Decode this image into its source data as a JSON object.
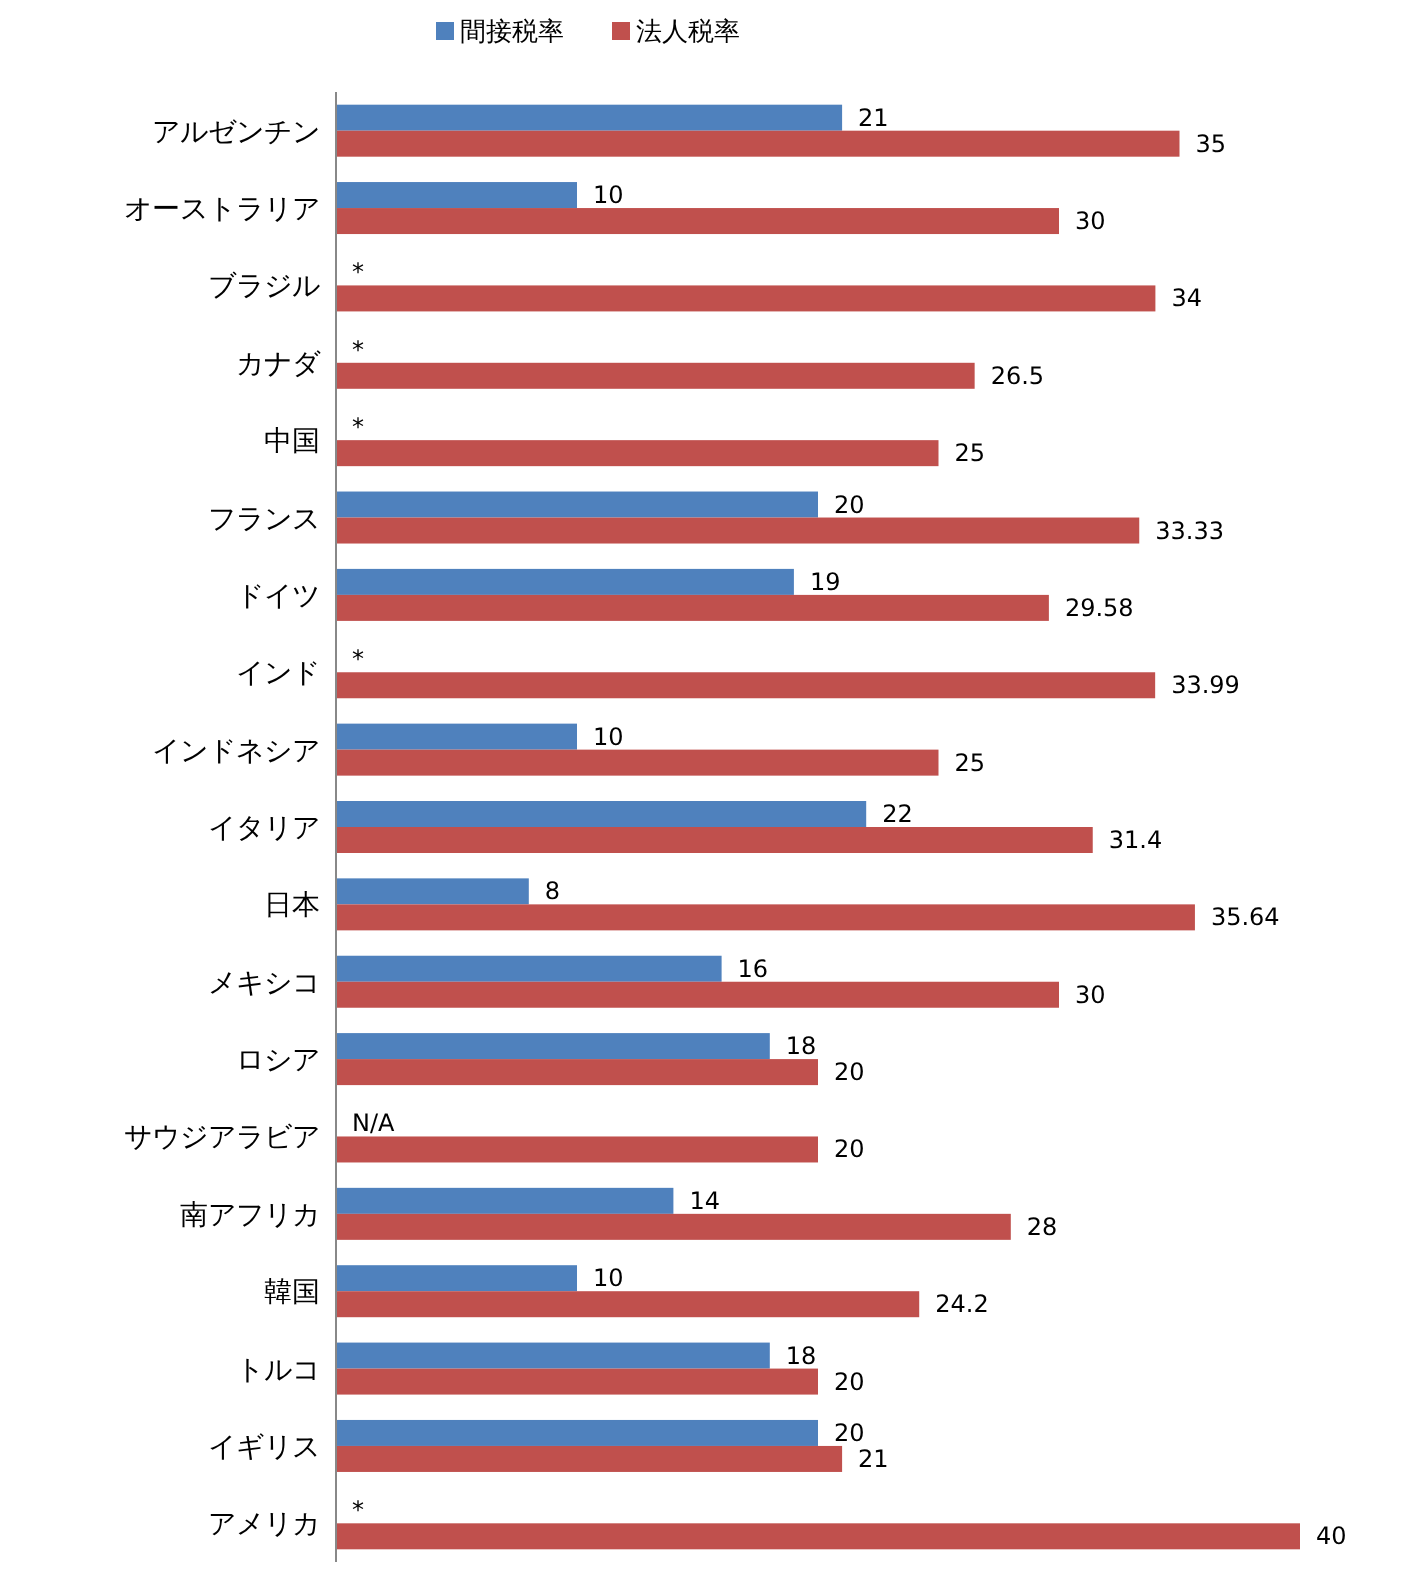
{
  "chart_data": {
    "type": "bar",
    "orientation": "horizontal",
    "legend": "top",
    "categories": [
      "アルゼンチン",
      "オーストラリア",
      "ブラジル",
      "カナダ",
      "中国",
      "フランス",
      "ドイツ",
      "インド",
      "インドネシア",
      "イタリア",
      "日本",
      "メキシコ",
      "ロシア",
      "サウジアラビア",
      "南アフリカ",
      "韓国",
      "トルコ",
      "イギリス",
      "アメリカ"
    ],
    "series": [
      {
        "name": "間接税率",
        "color": "#4f81bd",
        "values": [
          21,
          10,
          null,
          null,
          null,
          20,
          19,
          null,
          10,
          22,
          8,
          16,
          18,
          null,
          14,
          10,
          18,
          20,
          null
        ],
        "value_labels": [
          "21",
          "10",
          "*",
          "*",
          "*",
          "20",
          "19",
          "*",
          "10",
          "22",
          "8",
          "16",
          "18",
          "N/A",
          "14",
          "10",
          "18",
          "20",
          "*"
        ]
      },
      {
        "name": "法人税率",
        "color": "#c0504d",
        "values": [
          35,
          30,
          34,
          26.5,
          25,
          33.33,
          29.58,
          33.99,
          25,
          31.4,
          35.64,
          30,
          20,
          20,
          28,
          24.2,
          20,
          21,
          40
        ],
        "value_labels": [
          "35",
          "30",
          "34",
          "26.5",
          "25",
          "33.33",
          "29.58",
          "33.99",
          "25",
          "31.4",
          "35.64",
          "30",
          "20",
          "20",
          "28",
          "24.2",
          "20",
          "21",
          "40"
        ]
      }
    ]
  }
}
